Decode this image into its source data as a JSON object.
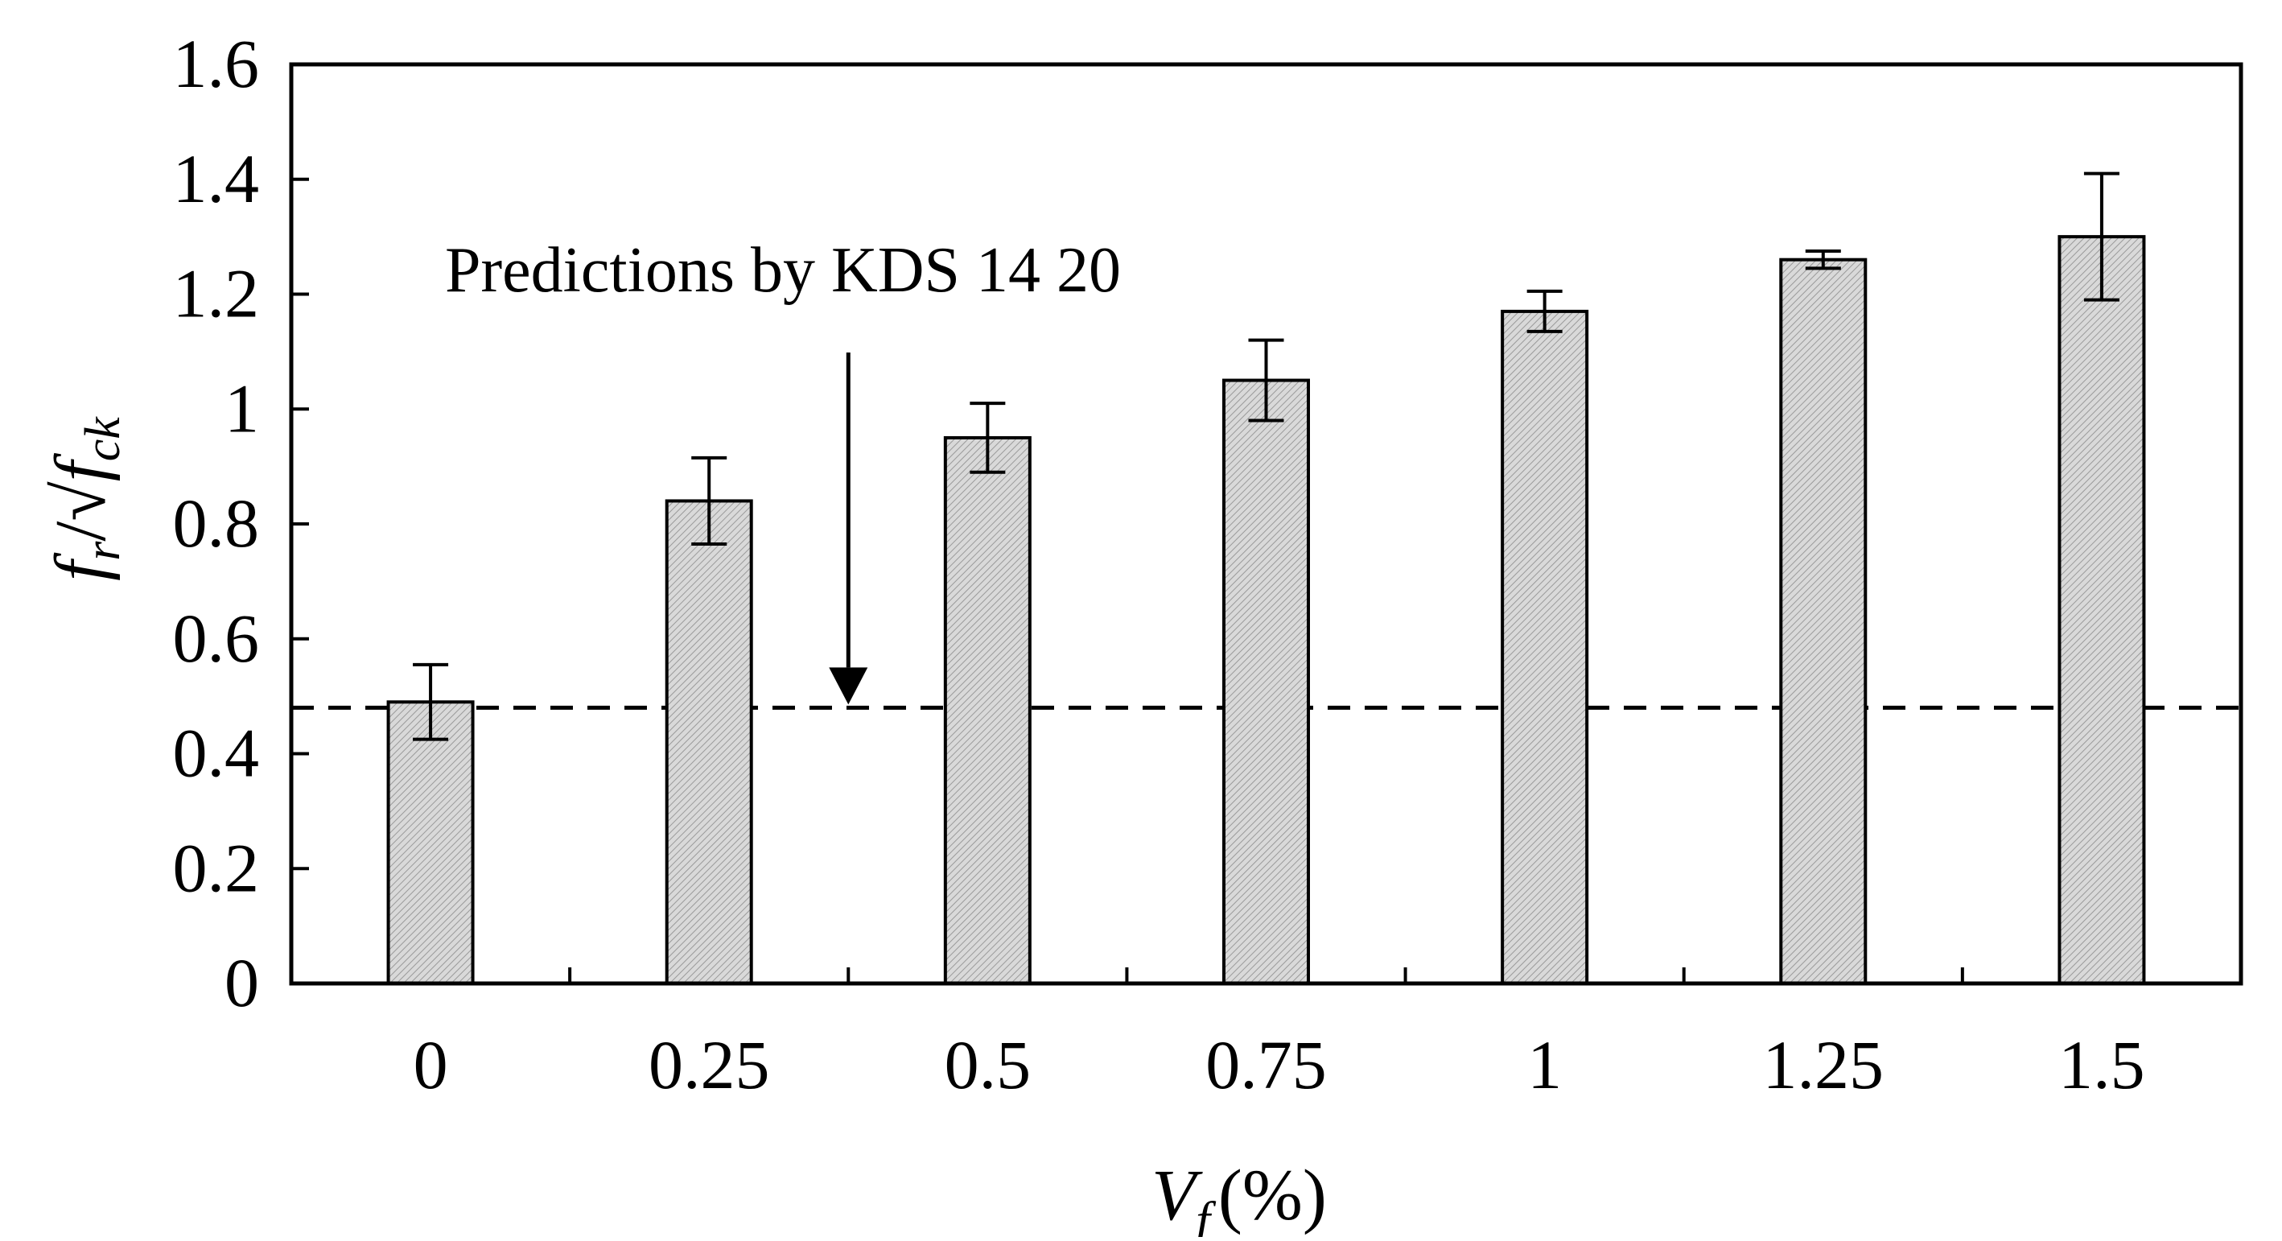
{
  "chart_data": {
    "type": "bar",
    "categories": [
      "0",
      "0.25",
      "0.5",
      "0.75",
      "1",
      "1.25",
      "1.5"
    ],
    "values": [
      0.49,
      0.84,
      0.95,
      1.05,
      1.17,
      1.26,
      1.3
    ],
    "error": [
      0.065,
      0.075,
      0.06,
      0.07,
      0.035,
      0.015,
      0.11
    ],
    "ylim": [
      0,
      1.6
    ],
    "yticks": [
      "0",
      "0.2",
      "0.4",
      "0.6",
      "0.8",
      "1",
      "1.2",
      "1.4",
      "1.6"
    ],
    "ytick_values": [
      0,
      0.2,
      0.4,
      0.6,
      0.8,
      1.0,
      1.2,
      1.4,
      1.6
    ],
    "reference_line": {
      "value": 0.48,
      "style": "dashed"
    },
    "annotation": {
      "text": "Predictions by KDS 14 20",
      "points_to_value": 0.48
    },
    "xlabel": {
      "symbol": "V",
      "subscript": "f",
      "unit": "(%)"
    },
    "ylabel": {
      "num": "f",
      "num_sub": "r",
      "sep": "/√",
      "den": "f",
      "den_sub": "ck"
    },
    "grid": false,
    "legend": "none",
    "colors": {
      "bar_fill": "#d9d9d9",
      "bar_hatch": "#9a9a9a",
      "bar_edge": "#000000",
      "axes": "#000000"
    }
  }
}
